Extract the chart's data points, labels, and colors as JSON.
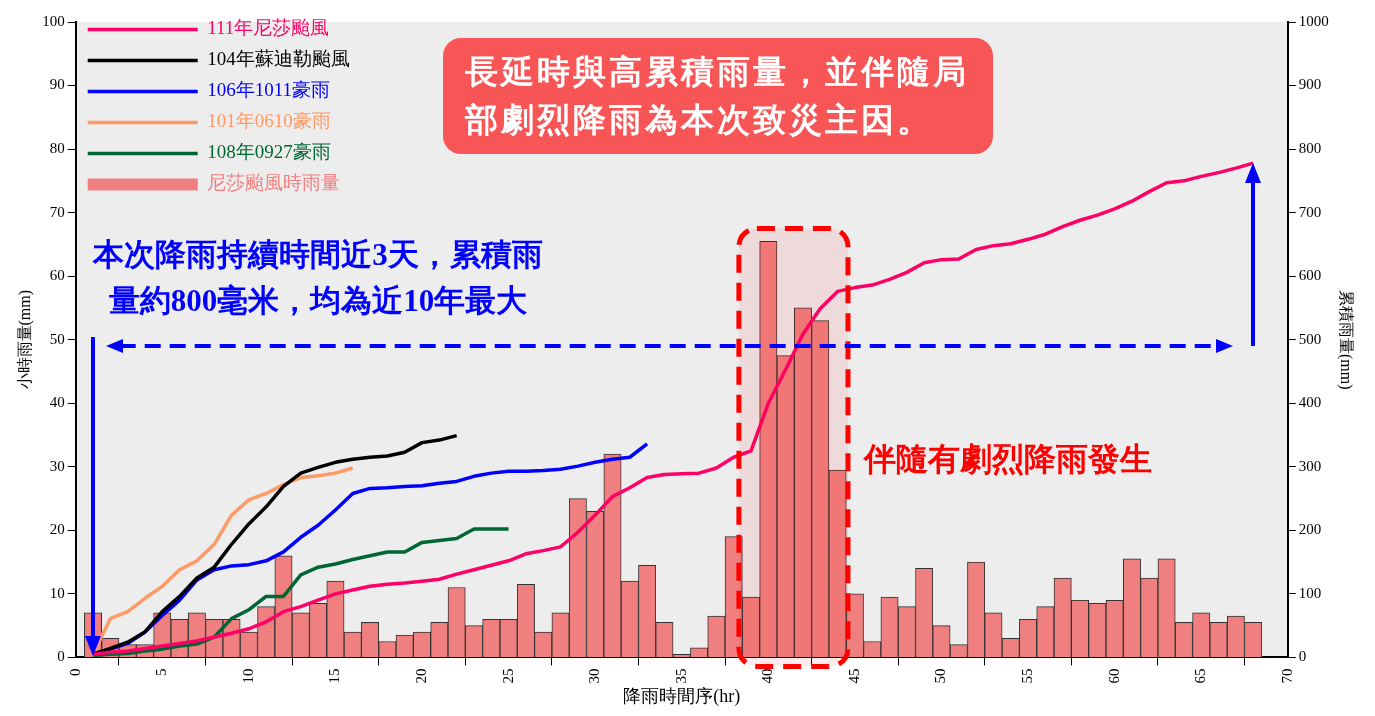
{
  "chart_data": {
    "type": "bar",
    "xlabel": "降雨時間序(hr)",
    "ylabel": "小時雨量(mm)",
    "y2label": "累積雨量(mm)",
    "x": [
      1,
      2,
      3,
      4,
      5,
      6,
      7,
      8,
      9,
      10,
      11,
      12,
      13,
      14,
      15,
      16,
      17,
      18,
      19,
      20,
      21,
      22,
      23,
      24,
      25,
      26,
      27,
      28,
      29,
      30,
      31,
      32,
      33,
      34,
      35,
      36,
      37,
      38,
      39,
      40,
      41,
      42,
      43,
      44,
      45,
      46,
      47,
      48,
      49,
      50,
      51,
      52,
      53,
      54,
      55,
      56,
      57,
      58,
      59,
      60,
      61,
      62,
      63,
      64,
      65,
      66,
      67,
      68
    ],
    "xlim": [
      0,
      70
    ],
    "xticks": [
      0,
      5,
      10,
      15,
      20,
      25,
      30,
      35,
      40,
      45,
      50,
      55,
      60,
      65,
      70
    ],
    "ylim": [
      0,
      100
    ],
    "yticks": [
      0,
      10,
      20,
      30,
      40,
      50,
      60,
      70,
      80,
      90,
      100
    ],
    "y2lim": [
      0,
      1000
    ],
    "y2ticks": [
      0,
      100,
      200,
      300,
      400,
      500,
      600,
      700,
      800,
      900,
      1000
    ],
    "grid": false,
    "legend": "top left",
    "series": [
      {
        "name": "111年尼莎颱風",
        "type": "line",
        "axis": "y2",
        "color": "#ff0066",
        "values": [
          5,
          8,
          10,
          14,
          18,
          22,
          26,
          32,
          38,
          45,
          56,
          72,
          80,
          90,
          100,
          106,
          112,
          115,
          117,
          120,
          123,
          131,
          138,
          145,
          152,
          163,
          168,
          174,
          197,
          224,
          253,
          267,
          283,
          288,
          289,
          290,
          298,
          315,
          325,
          400,
          453,
          509,
          549,
          576,
          582,
          586,
          595,
          606,
          621,
          626,
          627,
          642,
          648,
          651,
          658,
          666,
          678,
          688,
          696,
          706,
          718,
          733,
          747,
          750,
          757,
          763,
          770,
          778
        ]
      },
      {
        "name": "104年蘇迪勒颱風",
        "type": "line",
        "axis": "y2",
        "color": "#000000",
        "x": [
          1,
          2,
          3,
          4,
          5,
          6,
          7,
          8,
          9,
          10,
          11,
          12,
          13,
          14,
          15,
          16,
          17,
          18,
          19,
          20,
          21,
          22
        ],
        "values": [
          5,
          14,
          24,
          40,
          72,
          96,
          125,
          142,
          178,
          210,
          237,
          269,
          290,
          299,
          307,
          312,
          315,
          317,
          323,
          338,
          342,
          349
        ]
      },
      {
        "name": "106年1011豪雨",
        "type": "line",
        "axis": "y2",
        "color": "#0000ff",
        "x": [
          1,
          2,
          3,
          4,
          5,
          6,
          7,
          8,
          9,
          10,
          11,
          12,
          13,
          14,
          15,
          16,
          17,
          18,
          19,
          20,
          21,
          22,
          23,
          24,
          25,
          26,
          27,
          28,
          29,
          30,
          31,
          32,
          33
        ],
        "values": [
          5,
          13,
          22,
          40,
          66,
          90,
          122,
          138,
          144,
          146,
          152,
          166,
          189,
          208,
          232,
          258,
          266,
          267,
          269,
          270,
          274,
          277,
          285,
          290,
          293,
          293,
          294,
          296,
          301,
          307,
          312,
          315,
          336
        ]
      },
      {
        "name": "101年0610豪雨",
        "type": "line",
        "axis": "y2",
        "color": "#ff9966",
        "x": [
          1,
          2,
          3,
          4,
          5,
          6,
          7,
          8,
          9,
          10,
          11,
          12,
          13,
          14,
          15,
          16
        ],
        "values": [
          5,
          61,
          72,
          93,
          112,
          138,
          152,
          178,
          224,
          248,
          258,
          272,
          283,
          286,
          290,
          298
        ]
      },
      {
        "name": "108年0927豪雨",
        "type": "line",
        "axis": "y2",
        "color": "#006633",
        "x": [
          1,
          2,
          3,
          4,
          5,
          6,
          7,
          8,
          9,
          10,
          11,
          12,
          13,
          14,
          15,
          16,
          17,
          18,
          19,
          20,
          21,
          22,
          23,
          24,
          25
        ],
        "values": [
          3,
          5,
          6,
          10,
          13,
          18,
          21,
          32,
          61,
          75,
          96,
          96,
          130,
          142,
          147,
          154,
          160,
          166,
          166,
          181,
          184,
          187,
          202,
          202,
          202
        ]
      },
      {
        "name": "尼莎颱風時雨量",
        "axis": "y",
        "color": "#f08080",
        "values": [
          7,
          3,
          2,
          2,
          7,
          6,
          7,
          6,
          6,
          4,
          8,
          16,
          7,
          8.5,
          12,
          4,
          5.5,
          2.5,
          3.5,
          4,
          5.5,
          11,
          5,
          6,
          6,
          11.5,
          4,
          7,
          25,
          23,
          32,
          12,
          14.5,
          5.5,
          0.5,
          1.5,
          6.5,
          19,
          9.5,
          65.5,
          47.5,
          55,
          53,
          29.5,
          10,
          2.5,
          9.5,
          8,
          14,
          5,
          2,
          15,
          7,
          3,
          6,
          8,
          12.5,
          9,
          8.5,
          9,
          15.5,
          12.5,
          15.5,
          5.5,
          7,
          5.5,
          6.5,
          5.5
        ]
      }
    ],
    "ref_lines": [
      {
        "axis": "y2",
        "value": 490,
        "color": "#0000ff",
        "line_style": "dashed"
      }
    ],
    "bands": [
      {
        "axis": "x",
        "from": 38.3,
        "to": 44.6,
        "color": "#ff0000"
      }
    ],
    "annotations": [
      "長延時與高累積雨量，並伴隨局部劇烈降雨為本次致災主因。",
      "本次降雨持續時間近3天，累積雨量約800毫米，均為近10年最大",
      "伴隨有劇烈降雨發生"
    ]
  }
}
